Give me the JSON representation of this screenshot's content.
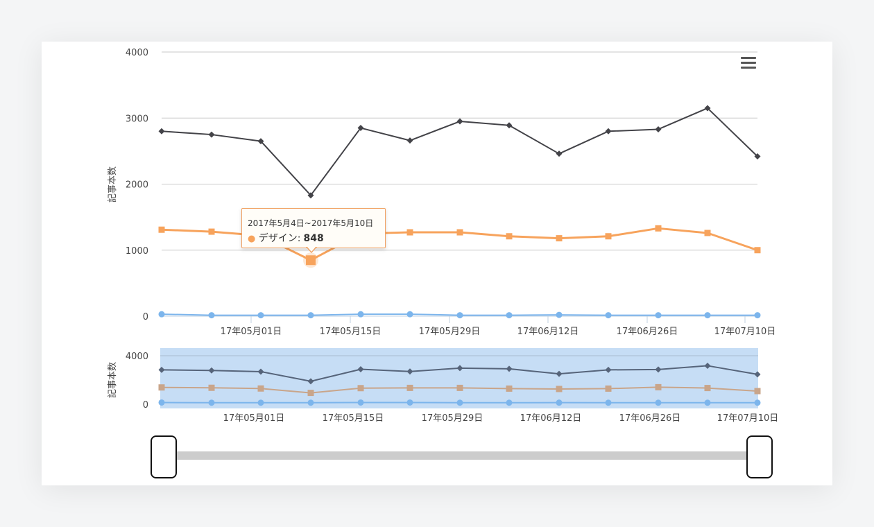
{
  "toolbar": {
    "menu_icon": "hamburger-menu-icon"
  },
  "tooltip": {
    "date_range": "2017年5月4日~2017年5月10日",
    "series": "デザイン",
    "value": "848",
    "color": "#f7a35c"
  },
  "navigator": {
    "ylabel": "記事本数",
    "yticks": [
      "4000",
      "0"
    ]
  },
  "chart_data": [
    {
      "type": "line",
      "ylabel": "記事本数",
      "ylim": [
        0,
        4000
      ],
      "yticks": [
        "0",
        "1000",
        "2000",
        "3000",
        "4000"
      ],
      "xticks": [
        "17年05月01日",
        "17年05月15日",
        "17年05月29日",
        "17年06月12日",
        "17年06月26日",
        "17年07月10日"
      ],
      "grid": true,
      "legend": "none",
      "series": [
        {
          "color": "#434348",
          "marker": "diamond",
          "values": [
            2800,
            2750,
            2650,
            1830,
            2850,
            2660,
            2950,
            2890,
            2460,
            2800,
            2830,
            3150,
            2420
          ]
        },
        {
          "name": "デザイン",
          "color": "#f7a35c",
          "marker": "square",
          "values": [
            1310,
            1280,
            1220,
            848,
            1250,
            1270,
            1270,
            1210,
            1180,
            1210,
            1330,
            1260,
            1000
          ]
        },
        {
          "color": "#7cb5ec",
          "marker": "circle",
          "values": [
            30,
            15,
            15,
            15,
            30,
            30,
            15,
            15,
            20,
            15,
            15,
            15,
            15
          ]
        }
      ]
    },
    {
      "type": "line",
      "role": "navigator",
      "ylabel": "記事本数",
      "yticks": [
        "0",
        "4000"
      ],
      "xticks": [
        "17年05月01日",
        "17年05月15日",
        "17年05月29日",
        "17年06月12日",
        "17年06月26日",
        "17年07月10日"
      ],
      "background": "#c6ddf5",
      "series": [
        {
          "color": "#56647a",
          "values": [
            2800,
            2750,
            2650,
            1830,
            2850,
            2660,
            2950,
            2890,
            2460,
            2800,
            2830,
            3150,
            2420
          ]
        },
        {
          "color": "#c9a58a",
          "values": [
            1310,
            1280,
            1220,
            848,
            1250,
            1270,
            1270,
            1210,
            1180,
            1210,
            1330,
            1260,
            1000
          ]
        },
        {
          "color": "#7cb5ec",
          "values": [
            30,
            15,
            15,
            15,
            30,
            30,
            15,
            15,
            20,
            15,
            15,
            15,
            15
          ]
        }
      ]
    }
  ]
}
